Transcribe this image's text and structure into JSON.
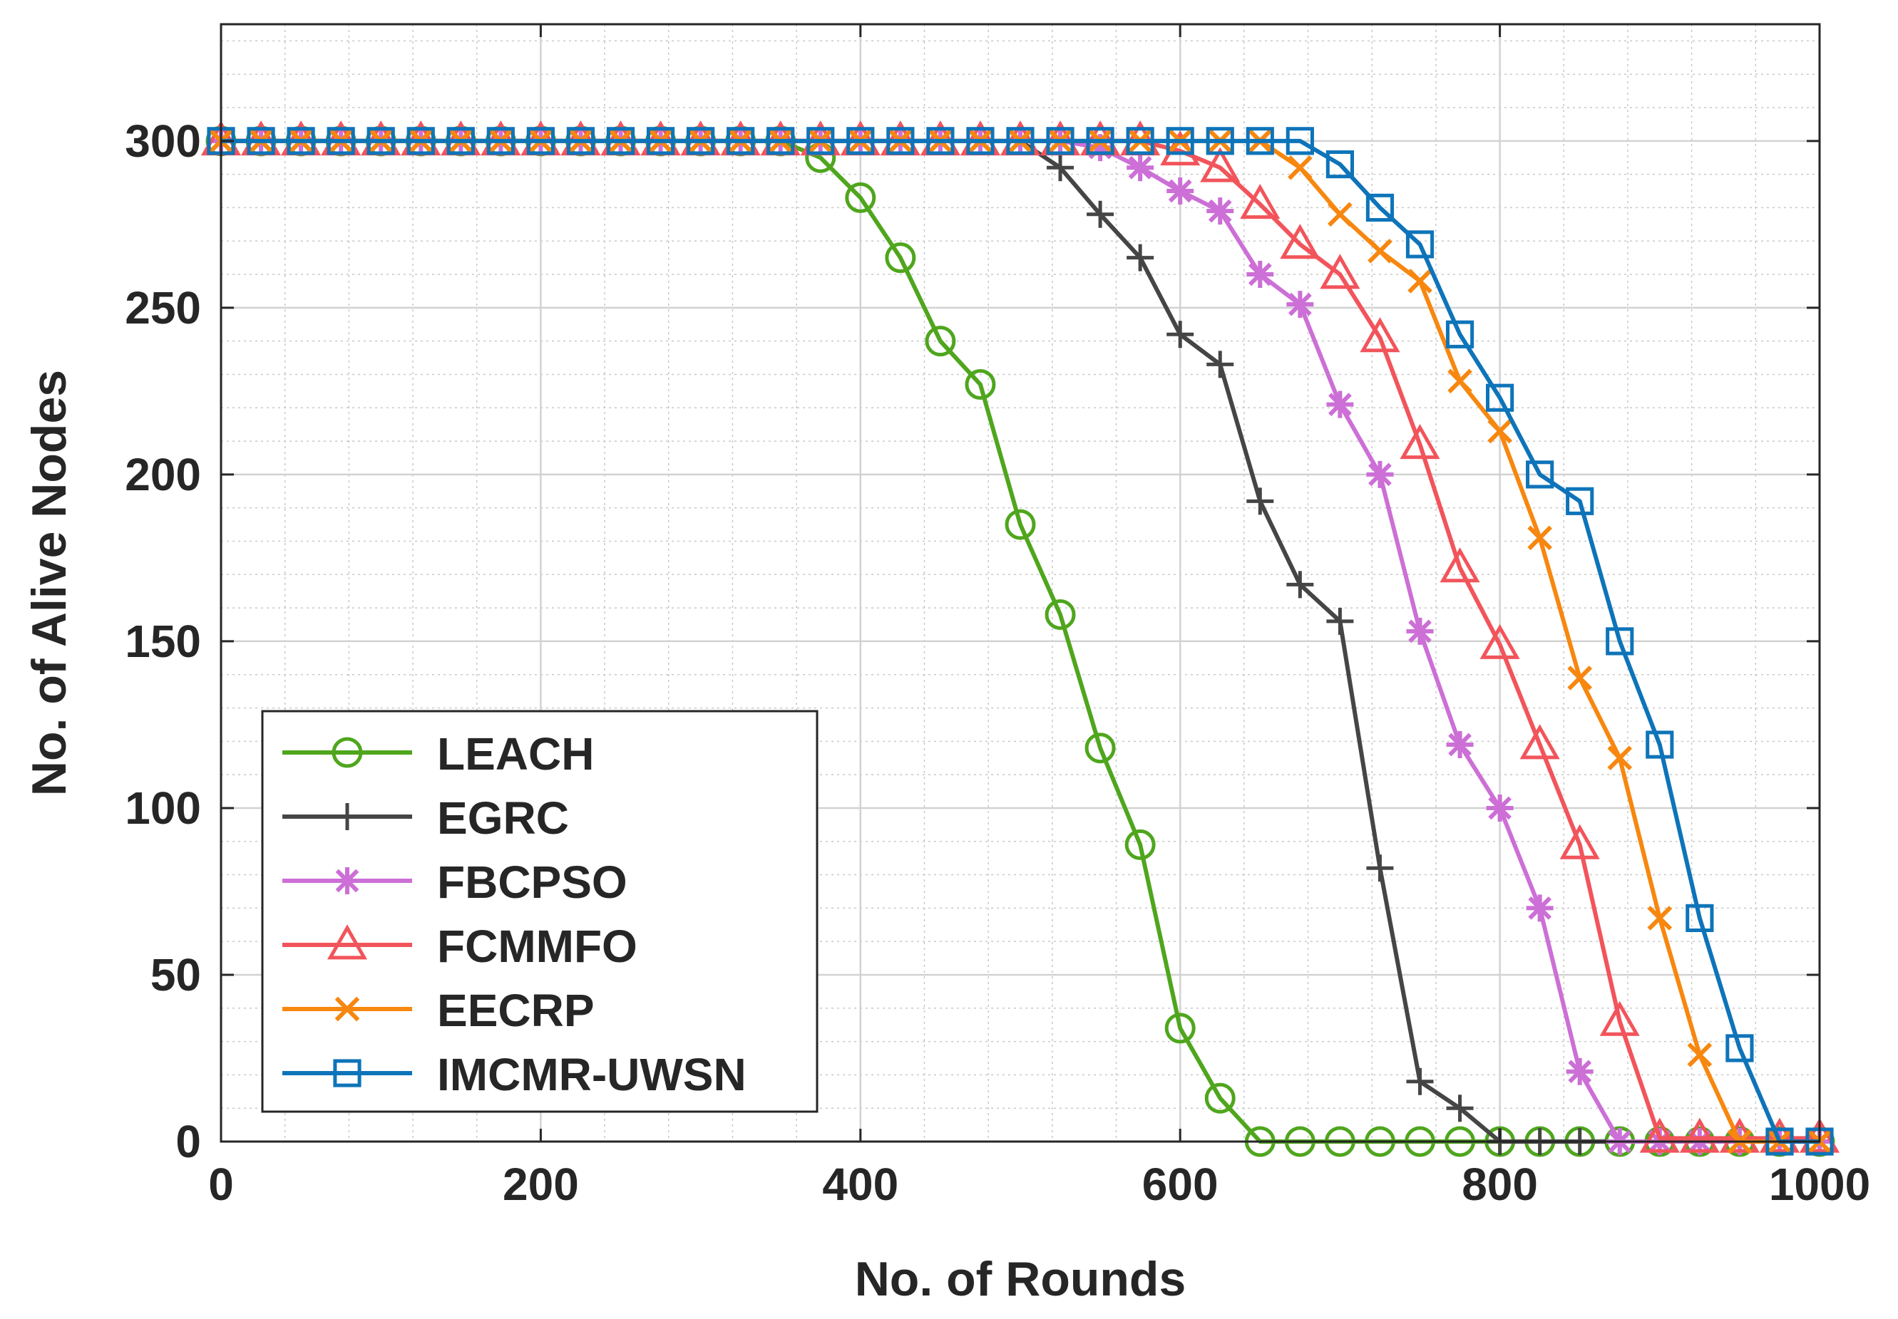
{
  "chart_data": {
    "type": "line",
    "title": "",
    "xlabel": "No. of Rounds",
    "ylabel": "No. of Alive Nodes",
    "xlim": [
      0,
      1000
    ],
    "ylim": [
      0,
      335
    ],
    "xticks": [
      "0",
      "200",
      "400",
      "600",
      "800",
      "1000"
    ],
    "yticks": [
      "0",
      "50",
      "100",
      "150",
      "200",
      "250",
      "300"
    ],
    "grid": true,
    "minor_grid": true,
    "legend_position": "bottom-left",
    "x": [
      0,
      25,
      50,
      75,
      100,
      125,
      150,
      175,
      200,
      225,
      250,
      275,
      300,
      325,
      350,
      375,
      400,
      425,
      450,
      475,
      500,
      525,
      550,
      575,
      600,
      625,
      650,
      675,
      700,
      725,
      750,
      775,
      800,
      825,
      850,
      875,
      900,
      925,
      950,
      975,
      1000
    ],
    "series": [
      {
        "name": "LEACH",
        "color": "#4fa61d",
        "marker": "circle",
        "values": [
          300,
          300,
          300,
          300,
          300,
          300,
          300,
          300,
          300,
          300,
          300,
          300,
          300,
          300,
          300,
          295,
          283,
          265,
          240,
          227,
          185,
          158,
          118,
          89,
          34,
          13,
          0,
          0,
          0,
          0,
          0,
          0,
          0,
          0,
          0,
          0,
          0,
          0,
          0,
          0,
          0
        ]
      },
      {
        "name": "EGRC",
        "color": "#454545",
        "marker": "plus",
        "values": [
          300,
          300,
          300,
          300,
          300,
          300,
          300,
          300,
          300,
          300,
          300,
          300,
          300,
          300,
          300,
          300,
          300,
          300,
          300,
          300,
          300,
          292,
          278,
          265,
          242,
          233,
          192,
          167,
          156,
          82,
          18,
          10,
          0,
          0,
          0,
          0,
          0,
          0,
          0,
          0,
          0
        ]
      },
      {
        "name": "FBCPSO",
        "color": "#cc6fd6",
        "marker": "asterisk",
        "values": [
          300,
          300,
          300,
          300,
          300,
          300,
          300,
          300,
          300,
          300,
          300,
          300,
          300,
          300,
          300,
          300,
          300,
          300,
          300,
          300,
          300,
          300,
          298,
          292,
          285,
          279,
          260,
          251,
          221,
          200,
          153,
          119,
          100,
          70,
          21,
          0,
          0,
          0,
          0,
          0,
          0
        ]
      },
      {
        "name": "FCMMFO",
        "color": "#f2545b",
        "marker": "triangle",
        "values": [
          300,
          300,
          300,
          300,
          300,
          300,
          300,
          300,
          300,
          300,
          300,
          300,
          300,
          300,
          300,
          300,
          300,
          300,
          300,
          300,
          300,
          300,
          300,
          300,
          297,
          292,
          281,
          269,
          260,
          241,
          209,
          172,
          149,
          119,
          89,
          36,
          1,
          1,
          1,
          1,
          1
        ]
      },
      {
        "name": "EECRP",
        "color": "#f7870f",
        "marker": "x",
        "values": [
          300,
          300,
          300,
          300,
          300,
          300,
          300,
          300,
          300,
          300,
          300,
          300,
          300,
          300,
          300,
          300,
          300,
          300,
          300,
          300,
          300,
          300,
          300,
          300,
          300,
          300,
          300,
          292,
          278,
          267,
          258,
          228,
          213,
          181,
          139,
          115,
          67,
          26,
          0,
          0,
          0
        ]
      },
      {
        "name": "IMCMR-UWSN",
        "color": "#0e74b9",
        "marker": "square",
        "values": [
          300,
          300,
          300,
          300,
          300,
          300,
          300,
          300,
          300,
          300,
          300,
          300,
          300,
          300,
          300,
          300,
          300,
          300,
          300,
          300,
          300,
          300,
          300,
          300,
          300,
          300,
          300,
          300,
          293,
          280,
          269,
          242,
          223,
          200,
          192,
          150,
          119,
          67,
          28,
          0,
          0
        ]
      }
    ]
  }
}
